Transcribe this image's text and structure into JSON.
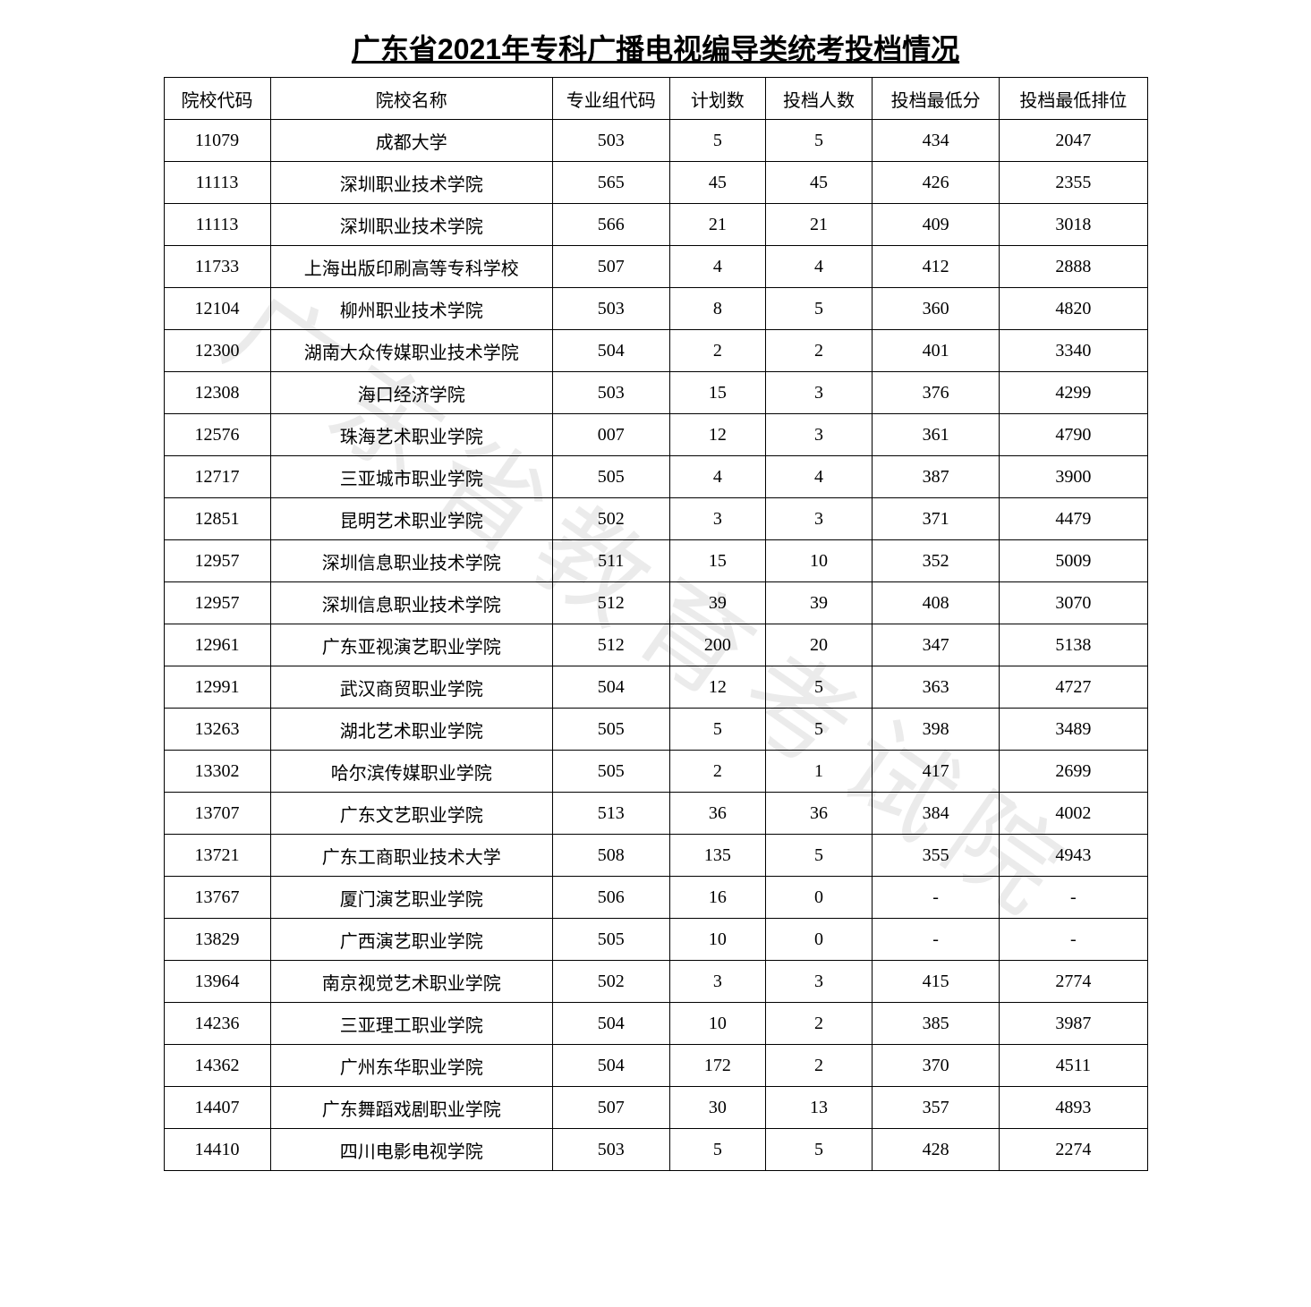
{
  "title": "广东省2021年专科广播电视编导类统考投档情况",
  "watermark": "广东省教育考试院",
  "table": {
    "columns": [
      "院校代码",
      "院校名称",
      "专业组代码",
      "计划数",
      "投档人数",
      "投档最低分",
      "投档最低排位"
    ],
    "rows": [
      [
        "11079",
        "成都大学",
        "503",
        "5",
        "5",
        "434",
        "2047"
      ],
      [
        "11113",
        "深圳职业技术学院",
        "565",
        "45",
        "45",
        "426",
        "2355"
      ],
      [
        "11113",
        "深圳职业技术学院",
        "566",
        "21",
        "21",
        "409",
        "3018"
      ],
      [
        "11733",
        "上海出版印刷高等专科学校",
        "507",
        "4",
        "4",
        "412",
        "2888"
      ],
      [
        "12104",
        "柳州职业技术学院",
        "503",
        "8",
        "5",
        "360",
        "4820"
      ],
      [
        "12300",
        "湖南大众传媒职业技术学院",
        "504",
        "2",
        "2",
        "401",
        "3340"
      ],
      [
        "12308",
        "海口经济学院",
        "503",
        "15",
        "3",
        "376",
        "4299"
      ],
      [
        "12576",
        "珠海艺术职业学院",
        "007",
        "12",
        "3",
        "361",
        "4790"
      ],
      [
        "12717",
        "三亚城市职业学院",
        "505",
        "4",
        "4",
        "387",
        "3900"
      ],
      [
        "12851",
        "昆明艺术职业学院",
        "502",
        "3",
        "3",
        "371",
        "4479"
      ],
      [
        "12957",
        "深圳信息职业技术学院",
        "511",
        "15",
        "10",
        "352",
        "5009"
      ],
      [
        "12957",
        "深圳信息职业技术学院",
        "512",
        "39",
        "39",
        "408",
        "3070"
      ],
      [
        "12961",
        "广东亚视演艺职业学院",
        "512",
        "200",
        "20",
        "347",
        "5138"
      ],
      [
        "12991",
        "武汉商贸职业学院",
        "504",
        "12",
        "5",
        "363",
        "4727"
      ],
      [
        "13263",
        "湖北艺术职业学院",
        "505",
        "5",
        "5",
        "398",
        "3489"
      ],
      [
        "13302",
        "哈尔滨传媒职业学院",
        "505",
        "2",
        "1",
        "417",
        "2699"
      ],
      [
        "13707",
        "广东文艺职业学院",
        "513",
        "36",
        "36",
        "384",
        "4002"
      ],
      [
        "13721",
        "广东工商职业技术大学",
        "508",
        "135",
        "5",
        "355",
        "4943"
      ],
      [
        "13767",
        "厦门演艺职业学院",
        "506",
        "16",
        "0",
        "-",
        "-"
      ],
      [
        "13829",
        "广西演艺职业学院",
        "505",
        "10",
        "0",
        "-",
        "-"
      ],
      [
        "13964",
        "南京视觉艺术职业学院",
        "502",
        "3",
        "3",
        "415",
        "2774"
      ],
      [
        "14236",
        "三亚理工职业学院",
        "504",
        "10",
        "2",
        "385",
        "3987"
      ],
      [
        "14362",
        "广州东华职业学院",
        "504",
        "172",
        "2",
        "370",
        "4511"
      ],
      [
        "14407",
        "广东舞蹈戏剧职业学院",
        "507",
        "30",
        "13",
        "357",
        "4893"
      ],
      [
        "14410",
        "四川电影电视学院",
        "503",
        "5",
        "5",
        "428",
        "2274"
      ]
    ]
  }
}
